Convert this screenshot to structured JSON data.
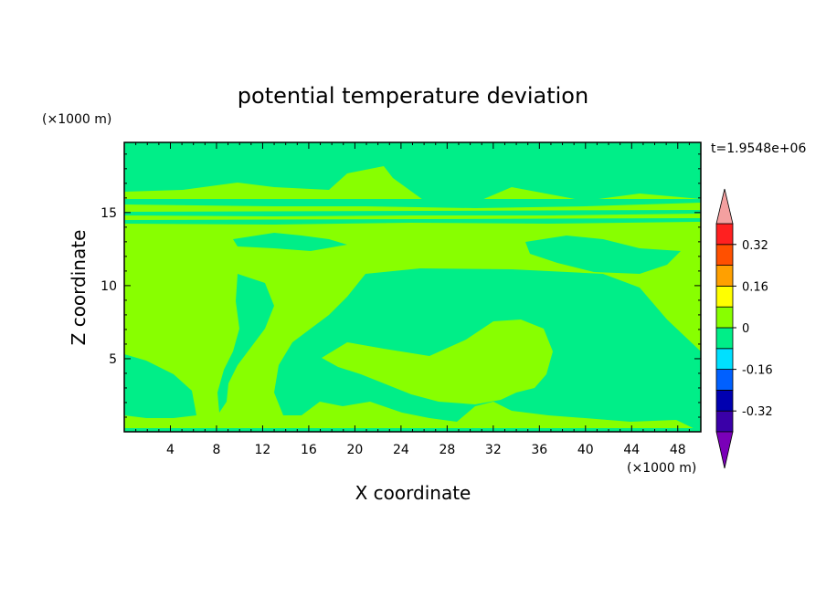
{
  "chart_data": {
    "type": "heatmap",
    "title": "potential temperature deviation",
    "xlabel": "X coordinate",
    "ylabel": "Z coordinate",
    "x_unit": "(×1000 m)",
    "y_unit": "(×1000 m)",
    "time_label": "t=1.9548e+06",
    "xlim": [
      0,
      50
    ],
    "ylim": [
      0,
      19.8
    ],
    "x_ticks": [
      4,
      8,
      12,
      16,
      20,
      24,
      28,
      32,
      36,
      40,
      44,
      48
    ],
    "y_ticks": [
      5,
      10,
      15
    ],
    "colorbar": {
      "levels": [
        -0.4,
        -0.32,
        -0.24,
        -0.16,
        -0.08,
        0,
        0.08,
        0.16,
        0.24,
        0.32,
        0.4
      ],
      "tick_labels": [
        "0.32",
        "0.16",
        "0",
        "-0.16",
        "-0.32"
      ],
      "tick_values": [
        0.32,
        0.16,
        0,
        -0.16,
        -0.32
      ],
      "colors": [
        "#7a00b8",
        "#3a00a8",
        "#0000b0",
        "#0060ff",
        "#00e0ff",
        "#00ee88",
        "#88ff00",
        "#ffff00",
        "#ffa000",
        "#ff5000",
        "#ff2020",
        "#f4a0a0"
      ],
      "under_color": "#7a00b8",
      "over_color": "#f4a0a0"
    },
    "field_colors": {
      "background": "#88ff00",
      "near_zero_negative": "#00ee88",
      "near_zero_positive": "#88ff00"
    }
  }
}
